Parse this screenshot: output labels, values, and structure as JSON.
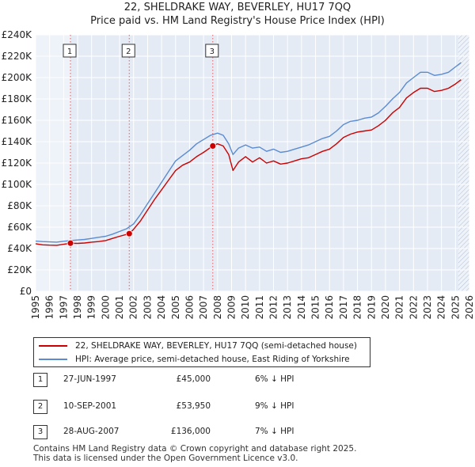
{
  "chart_data": {
    "type": "line",
    "title": "22, SHELDRAKE WAY, BEVERLEY, HU17 7QQ",
    "subtitle": "Price paid vs. HM Land Registry's House Price Index (HPI)",
    "xlim": [
      1995,
      2026
    ],
    "ylim": [
      0,
      240000
    ],
    "x_ticks": [
      1995,
      1996,
      1997,
      1998,
      1999,
      2000,
      2001,
      2002,
      2003,
      2004,
      2005,
      2006,
      2007,
      2008,
      2009,
      2010,
      2011,
      2012,
      2013,
      2014,
      2015,
      2016,
      2017,
      2018,
      2019,
      2020,
      2021,
      2022,
      2023,
      2024,
      2025,
      2026
    ],
    "y_ticks": [
      {
        "value": 0,
        "label": "£0"
      },
      {
        "value": 20000,
        "label": "£20K"
      },
      {
        "value": 40000,
        "label": "£40K"
      },
      {
        "value": 60000,
        "label": "£60K"
      },
      {
        "value": 80000,
        "label": "£80K"
      },
      {
        "value": 100000,
        "label": "£100K"
      },
      {
        "value": 120000,
        "label": "£120K"
      },
      {
        "value": 140000,
        "label": "£140K"
      },
      {
        "value": 160000,
        "label": "£160K"
      },
      {
        "value": 180000,
        "label": "£180K"
      },
      {
        "value": 200000,
        "label": "£200K"
      },
      {
        "value": 220000,
        "label": "£220K"
      },
      {
        "value": 240000,
        "label": "£240K"
      }
    ],
    "grid": true,
    "projection_start": 2025.2,
    "series": [
      {
        "name": "22, SHELDRAKE WAY, BEVERLEY, HU17 7QQ (semi-detached house)",
        "color": "#cc0000",
        "points": [
          [
            1995.0,
            44500
          ],
          [
            1995.5,
            43500
          ],
          [
            1996.0,
            43200
          ],
          [
            1996.5,
            43000
          ],
          [
            1997.0,
            44000
          ],
          [
            1997.49,
            45000
          ],
          [
            1998.0,
            44800
          ],
          [
            1998.5,
            45200
          ],
          [
            1999.0,
            46000
          ],
          [
            1999.5,
            46500
          ],
          [
            2000.0,
            47500
          ],
          [
            2000.5,
            49500
          ],
          [
            2001.0,
            51500
          ],
          [
            2001.69,
            53950
          ],
          [
            2002.0,
            58000
          ],
          [
            2002.5,
            66000
          ],
          [
            2003.0,
            76000
          ],
          [
            2003.5,
            86000
          ],
          [
            2004.0,
            95000
          ],
          [
            2004.5,
            104000
          ],
          [
            2005.0,
            113000
          ],
          [
            2005.5,
            118000
          ],
          [
            2006.0,
            121000
          ],
          [
            2006.5,
            126000
          ],
          [
            2007.0,
            130000
          ],
          [
            2007.66,
            136000
          ],
          [
            2008.0,
            138000
          ],
          [
            2008.4,
            136000
          ],
          [
            2008.8,
            128000
          ],
          [
            2009.1,
            113000
          ],
          [
            2009.5,
            121000
          ],
          [
            2010.0,
            126000
          ],
          [
            2010.5,
            121000
          ],
          [
            2011.0,
            125000
          ],
          [
            2011.5,
            120000
          ],
          [
            2012.0,
            122000
          ],
          [
            2012.5,
            119000
          ],
          [
            2013.0,
            120000
          ],
          [
            2013.5,
            122000
          ],
          [
            2014.0,
            124000
          ],
          [
            2014.5,
            125000
          ],
          [
            2015.0,
            128000
          ],
          [
            2015.5,
            131000
          ],
          [
            2016.0,
            133000
          ],
          [
            2016.5,
            138000
          ],
          [
            2017.0,
            144000
          ],
          [
            2017.5,
            147000
          ],
          [
            2018.0,
            149000
          ],
          [
            2018.5,
            150000
          ],
          [
            2019.0,
            151000
          ],
          [
            2019.5,
            155000
          ],
          [
            2020.0,
            160000
          ],
          [
            2020.5,
            167000
          ],
          [
            2021.0,
            172000
          ],
          [
            2021.5,
            181000
          ],
          [
            2022.0,
            186000
          ],
          [
            2022.5,
            190000
          ],
          [
            2023.0,
            190000
          ],
          [
            2023.5,
            187000
          ],
          [
            2024.0,
            188000
          ],
          [
            2024.5,
            190000
          ],
          [
            2025.0,
            194000
          ],
          [
            2025.4,
            198000
          ]
        ]
      },
      {
        "name": "HPI: Average price, semi-detached house, East Riding of Yorkshire",
        "color": "#5b8bd0",
        "points": [
          [
            1995.0,
            47000
          ],
          [
            1995.5,
            46500
          ],
          [
            1996.0,
            46200
          ],
          [
            1996.5,
            46000
          ],
          [
            1997.0,
            46800
          ],
          [
            1997.5,
            47500
          ],
          [
            1998.0,
            48000
          ],
          [
            1998.5,
            48500
          ],
          [
            1999.0,
            49500
          ],
          [
            1999.5,
            50500
          ],
          [
            2000.0,
            51500
          ],
          [
            2000.5,
            53500
          ],
          [
            2001.0,
            56000
          ],
          [
            2001.5,
            58500
          ],
          [
            2002.0,
            63000
          ],
          [
            2002.5,
            72000
          ],
          [
            2003.0,
            82000
          ],
          [
            2003.5,
            92000
          ],
          [
            2004.0,
            102000
          ],
          [
            2004.5,
            112000
          ],
          [
            2005.0,
            122000
          ],
          [
            2005.5,
            127000
          ],
          [
            2006.0,
            132000
          ],
          [
            2006.5,
            138000
          ],
          [
            2007.0,
            142000
          ],
          [
            2007.5,
            146000
          ],
          [
            2008.0,
            148000
          ],
          [
            2008.4,
            146000
          ],
          [
            2008.8,
            138000
          ],
          [
            2009.1,
            128000
          ],
          [
            2009.5,
            134000
          ],
          [
            2010.0,
            137000
          ],
          [
            2010.5,
            134000
          ],
          [
            2011.0,
            135000
          ],
          [
            2011.5,
            131000
          ],
          [
            2012.0,
            133000
          ],
          [
            2012.5,
            130000
          ],
          [
            2013.0,
            131000
          ],
          [
            2013.5,
            133000
          ],
          [
            2014.0,
            135000
          ],
          [
            2014.5,
            137000
          ],
          [
            2015.0,
            140000
          ],
          [
            2015.5,
            143000
          ],
          [
            2016.0,
            145000
          ],
          [
            2016.5,
            150000
          ],
          [
            2017.0,
            156000
          ],
          [
            2017.5,
            159000
          ],
          [
            2018.0,
            160000
          ],
          [
            2018.5,
            162000
          ],
          [
            2019.0,
            163000
          ],
          [
            2019.5,
            167000
          ],
          [
            2020.0,
            173000
          ],
          [
            2020.5,
            180000
          ],
          [
            2021.0,
            186000
          ],
          [
            2021.5,
            195000
          ],
          [
            2022.0,
            200000
          ],
          [
            2022.5,
            205000
          ],
          [
            2023.0,
            205000
          ],
          [
            2023.5,
            202000
          ],
          [
            2024.0,
            203000
          ],
          [
            2024.5,
            205000
          ],
          [
            2025.0,
            210000
          ],
          [
            2025.4,
            214000
          ]
        ]
      }
    ],
    "sales": [
      {
        "num": "1",
        "x": 1997.49,
        "price": 45000
      },
      {
        "num": "2",
        "x": 2001.69,
        "price": 53950
      },
      {
        "num": "3",
        "x": 2007.66,
        "price": 136000
      }
    ]
  },
  "legend": {
    "property": "22, SHELDRAKE WAY, BEVERLEY, HU17 7QQ (semi-detached house)",
    "hpi": "HPI: Average price, semi-detached house, East Riding of Yorkshire"
  },
  "table": [
    {
      "num": "1",
      "date": "27-JUN-1997",
      "price": "£45,000",
      "hpi": "6% ↓ HPI"
    },
    {
      "num": "2",
      "date": "10-SEP-2001",
      "price": "£53,950",
      "hpi": "9% ↓ HPI"
    },
    {
      "num": "3",
      "date": "28-AUG-2007",
      "price": "£136,000",
      "hpi": "7% ↓ HPI"
    }
  ],
  "footer": {
    "line1": "Contains HM Land Registry data © Crown copyright and database right 2025.",
    "line2": "This data is licensed under the Open Government Licence v3.0."
  },
  "colors": {
    "property": "#cc0000",
    "hpi": "#5b8bd0",
    "plot_bg": "#eef2f9",
    "shade": "#dde5f2",
    "grid": "#ffffff"
  }
}
